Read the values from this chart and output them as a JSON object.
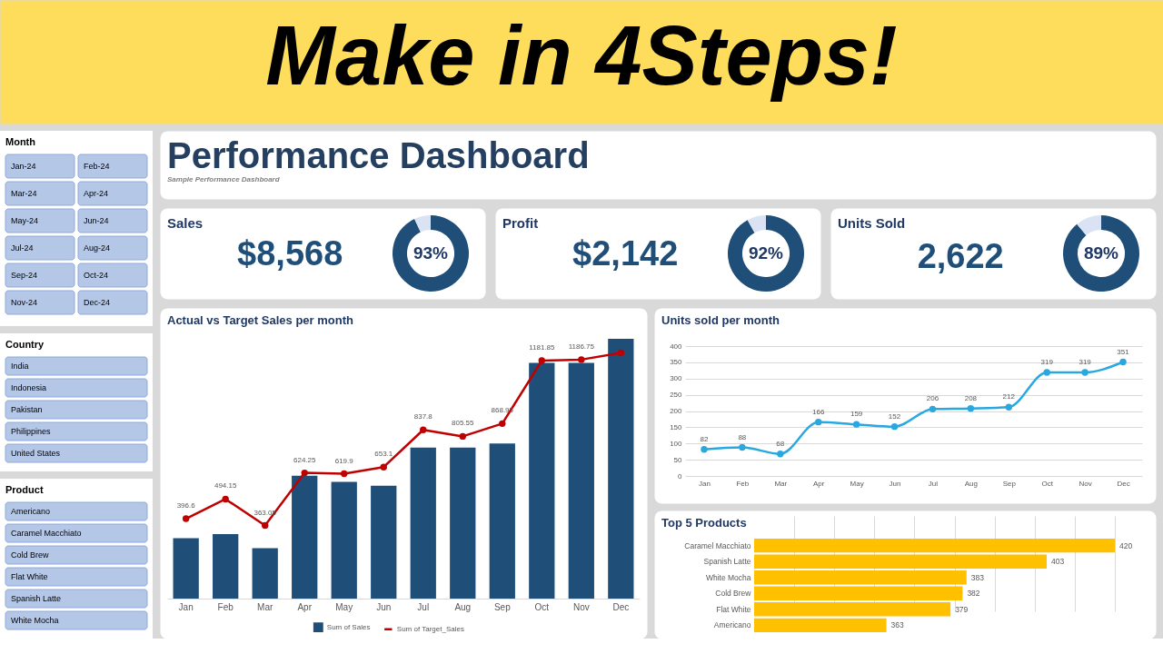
{
  "chart_data": [
    {
      "type": "other",
      "title": "Make in 4Steps!"
    },
    {
      "type": "other",
      "title": "Month",
      "annotations": [
        "Jan-24",
        "Feb-24",
        "Mar-24",
        "Apr-24",
        "May-24",
        "Jun-24",
        "Jul-24",
        "Aug-24",
        "Sep-24",
        "Oct-24",
        "Nov-24",
        "Dec-24"
      ]
    },
    {
      "type": "other",
      "title": "Country",
      "annotations": [
        "India",
        "Indonesia",
        "Pakistan",
        "Philippines",
        "United States"
      ]
    },
    {
      "type": "other",
      "title": "Product",
      "annotations": [
        "Americano",
        "Caramel Macchiato",
        "Cold Brew",
        "Flat White",
        "Spanish Latte",
        "White Mocha"
      ]
    },
    {
      "type": "other",
      "title": "Performance Dashboard",
      "subtitle": "Sample Performance Dashboard"
    },
    {
      "type": "donut",
      "title": "Sales",
      "annotations": [
        "$8,568"
      ],
      "categories": [
        null,
        null
      ],
      "values": [
        93,
        7
      ],
      "colors": [
        "#1f4e79",
        "#dae3f3"
      ],
      "value_labels": [
        "93%",
        null
      ]
    },
    {
      "type": "donut",
      "title": "Profit",
      "annotations": [
        "$2,142"
      ],
      "categories": [
        null,
        null
      ],
      "values": [
        92,
        8
      ],
      "colors": [
        "#1f4e79",
        "#dae3f3"
      ],
      "value_labels": [
        "92%",
        null
      ]
    },
    {
      "type": "donut",
      "title": "Units Sold",
      "annotations": [
        "2,622"
      ],
      "categories": [
        null,
        null
      ],
      "values": [
        89,
        11
      ],
      "colors": [
        "#1f4e79",
        "#dae3f3"
      ],
      "value_labels": [
        "89%",
        null
      ]
    },
    {
      "type": "bar",
      "title": "Actual vs Target Sales per month",
      "categories": [
        "Jan",
        "Feb",
        "Mar",
        "Apr",
        "May",
        "Jun",
        "Jul",
        "Aug",
        "Sep",
        "Oct",
        "Nov",
        "Dec"
      ],
      "series": [
        {
          "name": "Sum of Sales",
          "type": "bar",
          "color": "#1f4e79",
          "values": [
            300,
            320,
            250,
            610,
            580,
            560,
            750,
            750,
            770,
            1170,
            1170,
            1290
          ]
        },
        {
          "name": "Sum of Target_Sales",
          "type": "line",
          "color": "#c00000",
          "values": [
            396.6,
            494.15,
            363.05,
            624.25,
            619.9,
            653.1,
            837.8,
            805.55,
            868.95,
            1181.85,
            1186.75,
            1220
          ],
          "value_labels": [
            "396.6",
            "494.15",
            "363.05",
            "624.25",
            "619.9",
            "653.1",
            "837.8",
            "805.55",
            "868.95",
            "1181.85",
            "1186.75",
            null
          ]
        }
      ],
      "marker": "circle",
      "legend": "bottom"
    },
    {
      "type": "line",
      "title": "Units sold per month",
      "categories": [
        "Jan",
        "Feb",
        "Mar",
        "Apr",
        "May",
        "Jun",
        "Jul",
        "Aug",
        "Sep",
        "Oct",
        "Nov",
        "Dec"
      ],
      "series": [
        {
          "color": "#29a8e0",
          "values": [
            82,
            88,
            68,
            166,
            159,
            152,
            206,
            208,
            212,
            319,
            319,
            351
          ]
        }
      ],
      "ylim": [
        0,
        400
      ],
      "yticks": [
        0,
        50,
        100,
        150,
        200,
        250,
        300,
        350,
        400
      ],
      "grid": "y",
      "marker": "circle",
      "data_labels": true
    },
    {
      "type": "bar",
      "orientation": "horizontal",
      "title": "Top 5 Products",
      "categories": [
        "Caramel Macchiato",
        "Spanish Latte",
        "White Mocha",
        "Cold Brew",
        "Flat White",
        "Americano"
      ],
      "values": [
        420,
        403,
        383,
        382,
        379,
        363
      ],
      "color": "#ffc000",
      "xlim": [
        330,
        420
      ],
      "xticks": [
        {
          "value": 340,
          "label": null
        },
        {
          "value": 350,
          "label": null
        },
        {
          "value": 360,
          "label": null
        },
        {
          "value": 370,
          "label": null
        },
        {
          "value": 380,
          "label": null
        },
        {
          "value": 390,
          "label": null
        },
        {
          "value": 400,
          "label": null
        },
        {
          "value": 410,
          "label": null
        },
        {
          "value": 420,
          "label": null
        }
      ],
      "grid": "x",
      "tick_labels": "y",
      "data_labels": true
    }
  ]
}
